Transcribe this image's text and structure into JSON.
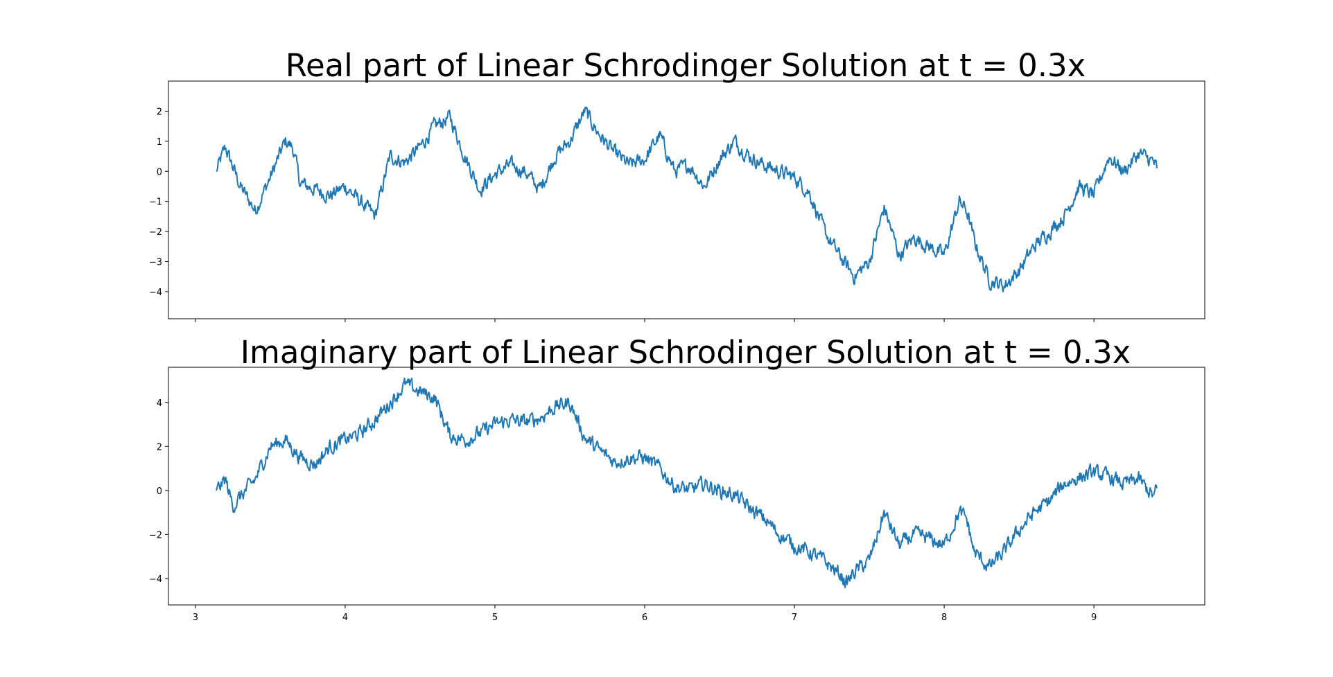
{
  "chart_data": [
    {
      "type": "line",
      "title": "Real part of Linear Schrodinger Solution at t = 0.3x",
      "xlabel": "",
      "ylabel": "",
      "xlim": [
        2.82,
        9.74
      ],
      "ylim": [
        -4.9,
        3.0
      ],
      "xticks": [
        3,
        4,
        5,
        6,
        7,
        8,
        9
      ],
      "xtick_labels_visible": false,
      "yticks": [
        -4,
        -3,
        -2,
        -1,
        0,
        1,
        2
      ],
      "ytick_labels": [
        "−4",
        "−3",
        "−2",
        "−1",
        "0",
        "1",
        "2"
      ],
      "grid": false,
      "series_color": "#1f77b4",
      "series": [
        {
          "x": [
            3.14,
            3.2,
            3.3,
            3.4,
            3.5,
            3.6,
            3.65,
            3.7,
            3.8,
            3.9,
            4.0,
            4.1,
            4.2,
            4.3,
            4.4,
            4.5,
            4.6,
            4.7,
            4.8,
            4.9,
            5.0,
            5.1,
            5.2,
            5.3,
            5.4,
            5.5,
            5.6,
            5.65,
            5.7,
            5.8,
            5.9,
            6.0,
            6.1,
            6.2,
            6.3,
            6.4,
            6.5,
            6.6,
            6.7,
            6.8,
            6.9,
            7.0,
            7.1,
            7.2,
            7.3,
            7.4,
            7.5,
            7.6,
            7.7,
            7.8,
            7.9,
            8.0,
            8.1,
            8.15,
            8.2,
            8.3,
            8.4,
            8.5,
            8.6,
            8.7,
            8.8,
            8.9,
            9.0,
            9.1,
            9.2,
            9.3,
            9.4,
            9.42
          ],
          "y": [
            0.0,
            0.8,
            -0.5,
            -1.3,
            -0.2,
            1.0,
            0.8,
            -0.4,
            -0.6,
            -0.8,
            -0.5,
            -1.0,
            -1.5,
            0.5,
            0.3,
            0.8,
            1.5,
            1.8,
            0.5,
            -0.6,
            -0.1,
            0.2,
            0.0,
            -0.6,
            0.5,
            1.0,
            2.0,
            1.6,
            1.2,
            0.6,
            0.2,
            0.4,
            1.2,
            0.0,
            0.2,
            -0.5,
            0.4,
            1.0,
            0.5,
            0.2,
            0.0,
            -0.2,
            -0.7,
            -2.0,
            -2.8,
            -3.5,
            -3.0,
            -1.2,
            -2.8,
            -2.2,
            -2.5,
            -2.8,
            -1.0,
            -1.3,
            -2.3,
            -3.6,
            -3.8,
            -3.3,
            -2.5,
            -2.0,
            -1.5,
            -0.5,
            -0.8,
            0.5,
            0.0,
            0.6,
            0.3,
            0.1
          ]
        }
      ]
    },
    {
      "type": "line",
      "title": "Imaginary part of Linear Schrodinger Solution at t = 0.3x",
      "xlabel": "",
      "ylabel": "",
      "xlim": [
        2.82,
        9.74
      ],
      "ylim": [
        -5.2,
        5.6
      ],
      "xticks": [
        3,
        4,
        5,
        6,
        7,
        8,
        9
      ],
      "xtick_labels": [
        "3",
        "4",
        "5",
        "6",
        "7",
        "8",
        "9"
      ],
      "yticks": [
        -4,
        -2,
        0,
        2,
        4
      ],
      "ytick_labels": [
        "−4",
        "−2",
        "0",
        "2",
        "4"
      ],
      "grid": false,
      "series_color": "#1f77b4",
      "series": [
        {
          "x": [
            3.14,
            3.2,
            3.25,
            3.3,
            3.4,
            3.5,
            3.6,
            3.7,
            3.8,
            3.9,
            4.0,
            4.1,
            4.2,
            4.3,
            4.4,
            4.5,
            4.6,
            4.7,
            4.8,
            4.9,
            5.0,
            5.1,
            5.2,
            5.3,
            5.4,
            5.5,
            5.6,
            5.7,
            5.8,
            5.9,
            6.0,
            6.1,
            6.2,
            6.3,
            6.4,
            6.5,
            6.6,
            6.7,
            6.8,
            6.9,
            7.0,
            7.1,
            7.2,
            7.3,
            7.35,
            7.4,
            7.5,
            7.6,
            7.7,
            7.8,
            7.9,
            8.0,
            8.1,
            8.15,
            8.2,
            8.3,
            8.4,
            8.5,
            8.6,
            8.7,
            8.8,
            8.9,
            9.0,
            9.1,
            9.2,
            9.3,
            9.4,
            9.42
          ],
          "y": [
            0.0,
            0.5,
            -0.7,
            -0.3,
            0.5,
            2.0,
            2.3,
            1.5,
            1.2,
            2.0,
            2.3,
            2.6,
            3.2,
            4.0,
            4.8,
            4.5,
            4.2,
            2.5,
            2.3,
            2.6,
            3.0,
            3.2,
            3.1,
            3.3,
            3.8,
            4.0,
            2.4,
            1.8,
            1.3,
            1.5,
            1.5,
            1.0,
            0.2,
            0.0,
            0.3,
            0.0,
            -0.2,
            -0.8,
            -1.3,
            -2.0,
            -2.5,
            -2.8,
            -3.2,
            -3.8,
            -4.2,
            -3.7,
            -3.2,
            -1.0,
            -2.5,
            -2.0,
            -2.2,
            -2.5,
            -1.0,
            -1.3,
            -2.8,
            -3.5,
            -2.8,
            -1.8,
            -1.0,
            -0.5,
            0.3,
            0.6,
            0.8,
            0.6,
            0.3,
            0.5,
            -0.3,
            0.1
          ]
        }
      ]
    }
  ]
}
